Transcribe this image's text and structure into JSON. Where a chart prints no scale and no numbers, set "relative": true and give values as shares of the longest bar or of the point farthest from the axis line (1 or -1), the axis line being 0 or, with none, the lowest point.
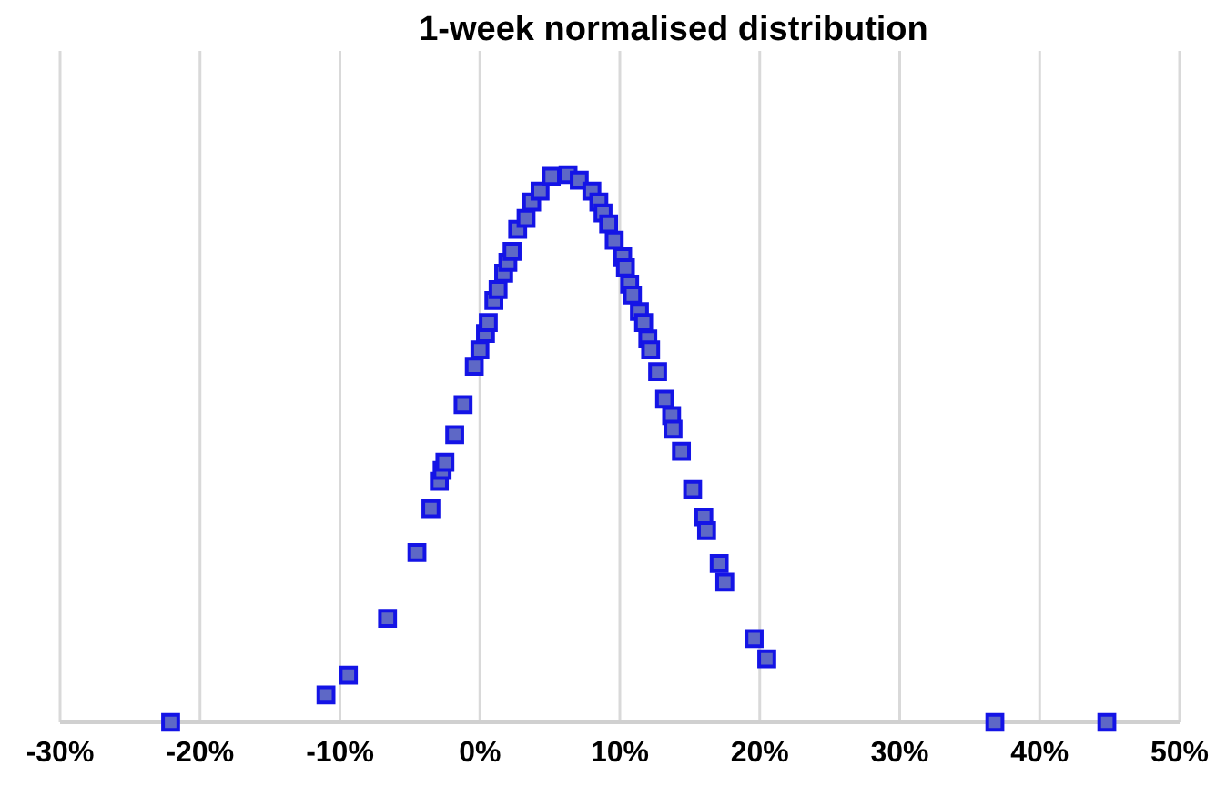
{
  "chart_data": {
    "type": "scatter",
    "title": "1-week normalised distribution",
    "relative": true,
    "grid": "x",
    "tick_labels": "x",
    "marker": "square",
    "xlim": [
      -30,
      50
    ],
    "xticks": [
      {
        "value": -30,
        "label": "-30%"
      },
      {
        "value": -20,
        "label": "-20%"
      },
      {
        "value": -10,
        "label": "-10%"
      },
      {
        "value": 0,
        "label": "0%"
      },
      {
        "value": 10,
        "label": "10%"
      },
      {
        "value": 20,
        "label": "20%"
      },
      {
        "value": 30,
        "label": "30%"
      },
      {
        "value": 40,
        "label": "40%"
      },
      {
        "value": 50,
        "label": "50%"
      }
    ],
    "series": [
      {
        "color": "#1414e6",
        "x": [
          -22.1,
          -11.0,
          -9.4,
          -6.6,
          -4.5,
          -3.5,
          -2.9,
          -2.7,
          -2.5,
          -1.8,
          -1.2,
          -0.4,
          0.0,
          0.4,
          0.6,
          1.0,
          1.3,
          1.7,
          2.0,
          2.3,
          2.7,
          3.3,
          3.7,
          4.3,
          5.1,
          6.3,
          7.1,
          8.0,
          8.5,
          8.8,
          9.2,
          9.6,
          10.2,
          10.4,
          10.7,
          10.9,
          11.4,
          11.7,
          12.0,
          12.2,
          12.7,
          13.2,
          13.7,
          13.8,
          14.4,
          15.2,
          16.0,
          16.2,
          17.1,
          17.5,
          19.6,
          20.5,
          36.8,
          44.8
        ],
        "values": [
          0,
          0.05,
          0.086,
          0.19,
          0.31,
          0.39,
          0.44,
          0.46,
          0.475,
          0.525,
          0.58,
          0.65,
          0.68,
          0.71,
          0.73,
          0.77,
          0.79,
          0.82,
          0.84,
          0.86,
          0.9,
          0.92,
          0.95,
          0.97,
          0.997,
          1,
          0.99,
          0.97,
          0.95,
          0.93,
          0.91,
          0.88,
          0.85,
          0.83,
          0.8,
          0.78,
          0.75,
          0.73,
          0.7,
          0.68,
          0.64,
          0.59,
          0.56,
          0.535,
          0.495,
          0.425,
          0.375,
          0.35,
          0.29,
          0.256,
          0.153,
          0.116,
          0,
          0
        ]
      }
    ]
  }
}
